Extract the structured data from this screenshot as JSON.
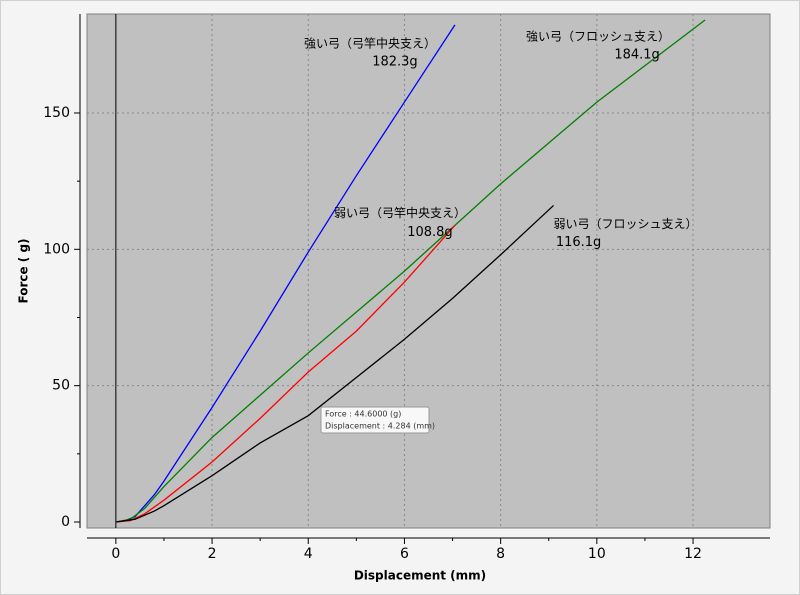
{
  "chart_data": {
    "type": "line",
    "x_label": "Displacement (mm)",
    "y_label": "Force ( g)",
    "xlim": [
      -0.6,
      13.6
    ],
    "ylim": [
      -2.2,
      186.3
    ],
    "xticks": [
      0,
      2,
      4,
      6,
      8,
      10,
      12
    ],
    "yticks": [
      0,
      50,
      100,
      150
    ],
    "grid": true,
    "series": [
      {
        "name": "強い弓（弓竿中央支え）",
        "color": "#0000ff",
        "end_label": "182.3g",
        "x": [
          0,
          0.2,
          0.4,
          0.6,
          0.8,
          1,
          2,
          3,
          4,
          5,
          6,
          7.05
        ],
        "values": [
          0,
          0.5,
          2,
          6,
          10,
          15,
          42,
          70,
          99,
          127,
          154,
          182.3
        ]
      },
      {
        "name": "強い弓（フロッシュ支え）",
        "color": "#008000",
        "end_label": "184.1g",
        "x": [
          0,
          0.3,
          0.6,
          1,
          2,
          4,
          6,
          8,
          10,
          12.25
        ],
        "values": [
          0,
          1,
          5,
          13,
          31,
          62,
          92,
          124,
          154,
          184.1
        ]
      },
      {
        "name": "弱い弓（弓竿中央支え）",
        "color": "#ff0000",
        "end_label": "108.8g",
        "x": [
          0,
          0.3,
          0.6,
          1,
          2,
          3,
          4,
          5,
          6,
          7.05
        ],
        "values": [
          0,
          0.5,
          3,
          8,
          22,
          38,
          55,
          70,
          88,
          108.8
        ]
      },
      {
        "name": "弱い弓（フロッシュ支え）",
        "color": "#000000",
        "end_label": "116.1g",
        "x": [
          0,
          0.4,
          0.8,
          1,
          2,
          3,
          4,
          5,
          6,
          7,
          8,
          9.1
        ],
        "values": [
          0,
          1,
          4,
          6,
          17,
          29,
          39,
          53,
          67,
          82,
          98,
          116.1
        ]
      }
    ],
    "tooltip": [
      "Force : 44.6000 (g)",
      "Displacement : 4.284 (mm)"
    ]
  }
}
